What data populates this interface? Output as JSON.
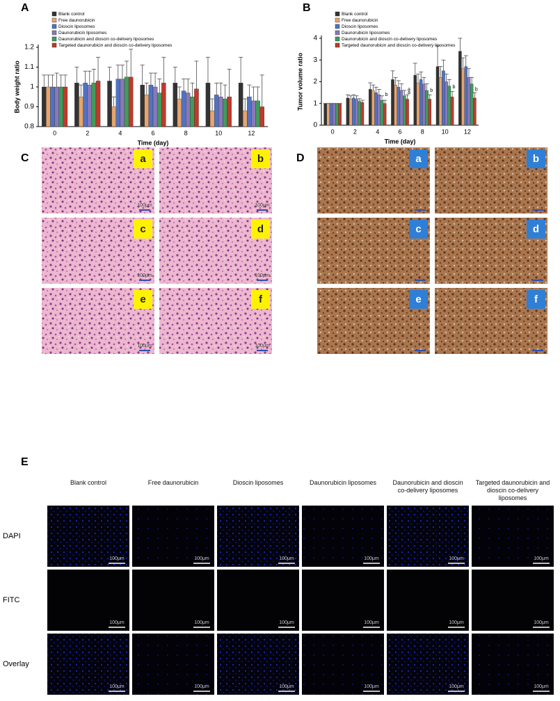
{
  "chart_data": [
    {
      "type": "bar",
      "label": "A",
      "ylabel": "Body weight ratio",
      "xlabel": "Time (day)",
      "categories": [
        "0",
        "2",
        "4",
        "6",
        "8",
        "10",
        "12"
      ],
      "ylim": [
        0.8,
        1.2
      ],
      "yticks": [
        0.8,
        0.9,
        1,
        1.1,
        1.2
      ],
      "series": [
        {
          "name": "Blank control",
          "color": "#333333",
          "values": [
            1.0,
            1.02,
            1.03,
            1.01,
            1.02,
            1.02,
            1.02
          ],
          "errors": [
            0.06,
            0.08,
            0.07,
            0.1,
            0.08,
            0.13,
            0.13
          ]
        },
        {
          "name": "Free daunorubicin",
          "color": "#e8a46c",
          "values": [
            1.0,
            0.95,
            0.9,
            0.96,
            0.94,
            0.88,
            0.88
          ],
          "errors": [
            0.06,
            0.06,
            0.05,
            0.06,
            0.06,
            0.06,
            0.06
          ]
        },
        {
          "name": "Dioscin liposomes",
          "color": "#4f73c4",
          "values": [
            1.0,
            1.02,
            1.04,
            1.01,
            0.98,
            0.96,
            0.95
          ],
          "errors": [
            0.06,
            0.06,
            0.07,
            0.06,
            0.06,
            0.06,
            0.06
          ]
        },
        {
          "name": "Daunorubicin liposomes",
          "color": "#8a78b8",
          "values": [
            1.0,
            1.01,
            1.04,
            1.0,
            0.97,
            0.95,
            0.93
          ],
          "errors": [
            0.07,
            0.07,
            0.07,
            0.07,
            0.07,
            0.07,
            0.07
          ]
        },
        {
          "name": "Daunorubicin and dioscin co-delivery liposomes",
          "color": "#3f9c5a",
          "values": [
            1.0,
            1.02,
            1.05,
            0.97,
            0.95,
            0.94,
            0.93
          ],
          "errors": [
            0.06,
            0.07,
            0.08,
            0.07,
            0.07,
            0.07,
            0.07
          ]
        },
        {
          "name": "Targeted daunorubicin and dioscin co-delivery liposomes",
          "color": "#c0392b",
          "values": [
            1.0,
            1.03,
            1.05,
            1.02,
            0.99,
            0.95,
            0.9
          ],
          "errors": [
            0.06,
            0.12,
            0.14,
            0.13,
            0.14,
            0.14,
            0.16
          ]
        }
      ]
    },
    {
      "type": "bar",
      "label": "B",
      "ylabel": "Tumor volume ratio",
      "xlabel": "Time (day)",
      "categories": [
        "0",
        "2",
        "4",
        "6",
        "8",
        "10",
        "12"
      ],
      "ylim": [
        0,
        4
      ],
      "yticks": [
        0,
        1,
        2,
        3,
        4
      ],
      "series": [
        {
          "name": "Blank control",
          "color": "#333333",
          "values": [
            1,
            1.25,
            1.65,
            2.1,
            2.3,
            2.7,
            3.4
          ],
          "errors": [
            0,
            0.15,
            0.3,
            0.4,
            0.55,
            0.95,
            0.6
          ]
        },
        {
          "name": "Free daunorubicin",
          "color": "#e8a46c",
          "values": [
            1,
            1.2,
            1.6,
            1.85,
            1.95,
            2.2,
            2.6
          ],
          "errors": [
            0,
            0.15,
            0.25,
            0.35,
            0.4,
            0.5,
            0.5
          ]
        },
        {
          "name": "Dioscin liposomes",
          "color": "#4f73c4",
          "values": [
            1,
            1.25,
            1.5,
            1.75,
            2.1,
            2.5,
            2.7
          ],
          "errors": [
            0,
            0.15,
            0.25,
            0.3,
            0.35,
            0.5,
            0.5
          ]
        },
        {
          "name": "Daunorubicin liposomes",
          "color": "#8a78b8",
          "values": [
            1,
            1.2,
            1.4,
            1.6,
            1.9,
            2.0,
            2.2
          ],
          "errors": [
            0,
            0.15,
            0.25,
            0.3,
            0.3,
            0.35,
            0.4
          ]
        },
        {
          "name": "Daunorubicin and dioscin co-delivery liposomes",
          "color": "#3f9c5a",
          "values": [
            1,
            1.1,
            1.15,
            1.35,
            1.6,
            1.8,
            1.9
          ],
          "errors": [
            0,
            0.12,
            0.2,
            0.25,
            0.3,
            0.3,
            0.3
          ]
        },
        {
          "name": "Targeted daunorubicin and dioscin co-delivery liposomes",
          "color": "#c0392b",
          "values": [
            1,
            1.05,
            1.0,
            1.2,
            1.2,
            1.3,
            1.25
          ],
          "errors": [
            0,
            0.1,
            0.15,
            0.2,
            0.2,
            0.25,
            0.25
          ]
        }
      ],
      "annotations": [
        {
          "text": "b",
          "x": "4",
          "y": 1.4
        },
        {
          "text": "a",
          "x": "6",
          "y": 1.65
        },
        {
          "text": "a",
          "x": "6",
          "y": 1.5
        },
        {
          "text": "b",
          "x": "8",
          "y": 1.6
        },
        {
          "text": "b",
          "x": "10",
          "y": 1.75
        },
        {
          "text": "b",
          "x": "12",
          "y": 1.65
        }
      ]
    }
  ],
  "histology": {
    "label": "C",
    "panels": [
      "a",
      "b",
      "c",
      "d",
      "e",
      "f"
    ],
    "scale_bar": "100μm"
  },
  "ihc": {
    "label": "D",
    "panels": [
      "a",
      "b",
      "c",
      "d",
      "e",
      "f"
    ]
  },
  "fluorescence": {
    "label": "E",
    "columns": [
      "Blank control",
      "Free daunorubicin",
      "Dioscin liposomes",
      "Daunorubicin liposomes",
      "Daunorubicin and dioscin co-delivery liposomes",
      "Targeted daunorubicin and dioscin co-delivery liposomes"
    ],
    "rows": [
      "DAPI",
      "FITC",
      "Overlay"
    ],
    "scale_bar": "100μm"
  }
}
